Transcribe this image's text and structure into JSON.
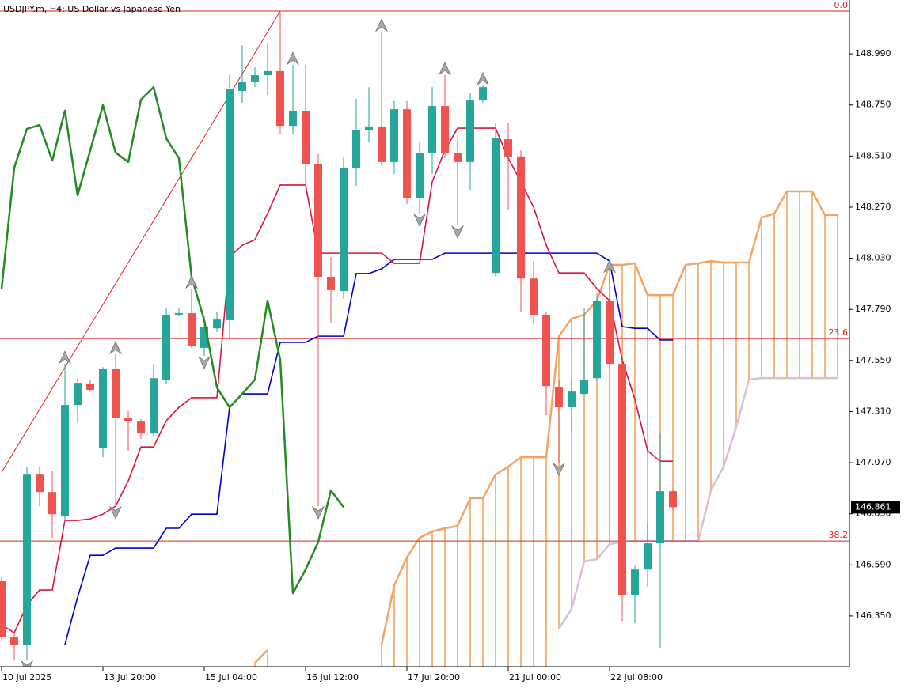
{
  "chart_data": {
    "type": "candlestick",
    "title": "USDJPY.m, H4:  US Dollar vs Japanese Yen",
    "categories": [
      "10 Jul 2025",
      null,
      null,
      null,
      null,
      null,
      null,
      null,
      "13 Jul 20:00",
      null,
      null,
      null,
      null,
      null,
      null,
      null,
      "15 Jul 04:00",
      null,
      null,
      null,
      null,
      null,
      null,
      null,
      "16 Jul 12:00",
      null,
      null,
      null,
      null,
      null,
      null,
      null,
      "17 Jul 20:00",
      null,
      null,
      null,
      null,
      null,
      null,
      null,
      "21 Jul 00:00",
      null,
      null,
      null,
      null,
      null,
      null,
      null,
      "22 Jul 08:00",
      null,
      null,
      null,
      null,
      null,
      null,
      null,
      null,
      null,
      null,
      null,
      null,
      null,
      null,
      null,
      null,
      null,
      null
    ],
    "open": [
      146.513,
      146.253,
      146.216,
      147.014,
      146.932,
      146.821,
      147.341,
      147.438,
      147.14,
      147.512,
      147.282,
      147.263,
      147.207,
      147.46,
      147.765,
      147.772,
      147.609,
      147.701,
      147.739,
      148.816,
      148.857,
      148.89,
      148.909,
      148.652,
      148.723,
      148.474,
      147.943,
      147.876,
      148.455,
      148.63,
      148.649,
      148.482,
      148.73,
      148.314,
      148.526,
      148.745,
      148.526,
      148.482,
      148.771,
      147.961,
      148.589,
      148.508,
      147.935,
      147.765,
      147.423,
      147.33,
      147.393,
      147.467,
      147.831,
      147.534,
      146.45,
      146.568,
      146.691,
      146.936,
      null,
      null,
      null,
      null,
      null,
      null,
      null,
      null,
      null,
      null,
      null,
      null,
      null
    ],
    "high": [
      146.531,
      146.271,
      147.051,
      147.051,
      147.033,
      147.534,
      147.467,
      147.46,
      147.519,
      147.579,
      147.311,
      147.274,
      147.534,
      147.794,
      147.794,
      147.887,
      147.757,
      147.776,
      148.89,
      149.031,
      148.927,
      149.039,
      149.191,
      148.938,
      148.938,
      148.519,
      148.036,
      148.508,
      148.779,
      148.834,
      149.094,
      148.768,
      148.768,
      148.574,
      148.834,
      148.89,
      148.593,
      148.805,
      148.842,
      148.667,
      148.667,
      148.537,
      148.017,
      147.776,
      147.46,
      147.46,
      147.794,
      147.869,
      147.961,
      147.553,
      146.587,
      146.791,
      147.207,
      146.94,
      null,
      null,
      null,
      null,
      null,
      null,
      null,
      null,
      null,
      null,
      null,
      null,
      null
    ],
    "low": [
      146.234,
      146.141,
      146.141,
      146.866,
      146.717,
      146.791,
      147.256,
      147.404,
      147.096,
      146.866,
      147.126,
      147.181,
      147.192,
      147.441,
      147.757,
      147.609,
      147.571,
      147.683,
      147.646,
      148.76,
      148.834,
      148.797,
      148.612,
      148.612,
      148.37,
      146.866,
      147.727,
      147.839,
      148.37,
      148.574,
      148.463,
      148.426,
      148.285,
      148.24,
      148.426,
      148.5,
      148.184,
      148.351,
      148.76,
      147.943,
      148.259,
      147.776,
      147.72,
      147.293,
      147.07,
      147.218,
      147.386,
      147.46,
      147.516,
      146.327,
      146.316,
      146.487,
      146.197,
      146.847,
      null,
      null,
      null,
      null,
      null,
      null,
      null,
      null,
      null,
      null,
      null,
      null,
      null
    ],
    "close": [
      146.253,
      146.216,
      147.014,
      146.932,
      146.828,
      147.341,
      147.445,
      147.412,
      147.512,
      147.282,
      147.263,
      147.207,
      147.467,
      147.765,
      147.772,
      147.616,
      147.709,
      147.742,
      148.823,
      148.857,
      148.89,
      148.909,
      148.652,
      148.723,
      148.474,
      147.943,
      147.88,
      148.455,
      148.63,
      148.649,
      148.482,
      148.73,
      148.314,
      148.526,
      148.745,
      148.526,
      148.482,
      148.771,
      148.834,
      148.593,
      148.508,
      147.935,
      147.765,
      147.43,
      147.33,
      147.404,
      147.46,
      147.831,
      147.534,
      146.45,
      146.568,
      146.691,
      146.936,
      146.861,
      null,
      null,
      null,
      null,
      null,
      null,
      null,
      null,
      null,
      null,
      null,
      null,
      null
    ],
    "up_color": "#26a69a",
    "down_color": "#ef5350",
    "last_price": 146.861,
    "ylim": [
      146.112,
      149.243
    ],
    "yticks": [
      {
        "value": 146.35,
        "label": "146.350"
      },
      {
        "value": 146.59,
        "label": "146.590"
      },
      {
        "value": 146.83,
        "label": "146.830"
      },
      {
        "value": 147.07,
        "label": "147.070"
      },
      {
        "value": 147.31,
        "label": "147.310"
      },
      {
        "value": 147.55,
        "label": "147.550"
      },
      {
        "value": 147.79,
        "label": "147.790"
      },
      {
        "value": 148.03,
        "label": "148.030"
      },
      {
        "value": 148.27,
        "label": "148.270"
      },
      {
        "value": 148.51,
        "label": "148.510"
      },
      {
        "value": 148.75,
        "label": "148.750"
      },
      {
        "value": 148.99,
        "label": "148.990"
      }
    ],
    "tenkan": {
      "color": "#dc143c",
      "values": [
        146.308,
        146.271,
        146.401,
        146.472,
        146.472,
        146.799,
        146.799,
        146.806,
        146.828,
        146.866,
        146.984,
        147.144,
        147.144,
        147.267,
        147.33,
        147.375,
        147.375,
        147.375,
        148.036,
        148.091,
        148.117,
        148.24,
        148.374,
        148.374,
        148.374,
        148.054,
        148.054,
        148.054,
        148.054,
        148.054,
        148.054,
        148.006,
        148.006,
        148.006,
        148.389,
        148.537,
        148.641,
        148.641,
        148.641,
        148.641,
        148.5,
        148.389,
        148.27,
        148.091,
        147.961,
        147.961,
        147.961,
        147.887,
        147.831,
        147.553,
        147.367,
        147.126,
        147.077,
        147.077,
        null,
        null,
        null,
        null,
        null,
        null,
        null,
        null,
        null,
        null,
        null,
        null,
        null
      ]
    },
    "kijun": {
      "color": "#0000cd",
      "values": [
        null,
        null,
        null,
        null,
        null,
        146.216,
        146.438,
        146.635,
        146.635,
        146.669,
        146.669,
        146.669,
        146.669,
        146.762,
        146.762,
        146.828,
        146.828,
        146.828,
        147.33,
        147.393,
        147.393,
        147.393,
        147.635,
        147.635,
        147.635,
        147.664,
        147.664,
        147.664,
        147.958,
        147.958,
        147.98,
        148.025,
        148.025,
        148.025,
        148.025,
        148.054,
        148.054,
        148.054,
        148.054,
        148.054,
        148.054,
        148.054,
        148.054,
        148.054,
        148.054,
        148.054,
        148.054,
        148.054,
        148.017,
        147.709,
        147.701,
        147.701,
        147.646,
        147.646,
        null,
        null,
        null,
        null,
        null,
        null,
        null,
        null,
        null,
        null,
        null,
        null,
        null
      ]
    },
    "chikou": {
      "color": "#228b22",
      "values": [
        147.887,
        148.455,
        148.638,
        148.656,
        148.489,
        148.723,
        148.326,
        148.537,
        148.749,
        148.526,
        148.482,
        148.775,
        148.834,
        148.593,
        148.5,
        147.943,
        147.739,
        147.423,
        147.33,
        147.393,
        147.46,
        147.831,
        147.553,
        146.457,
        146.568,
        146.698,
        146.94,
        146.861,
        null,
        null,
        null,
        null,
        null,
        null,
        null,
        null,
        null,
        null,
        null,
        null,
        null,
        null,
        null,
        null,
        null,
        null,
        null,
        null,
        null,
        null,
        null,
        null,
        null,
        null,
        null,
        null,
        null,
        null,
        null,
        null,
        null,
        null,
        null,
        null,
        null,
        null,
        null
      ]
    },
    "span_a": {
      "color": "#f4a460",
      "values": [
        null,
        null,
        null,
        null,
        null,
        null,
        null,
        null,
        null,
        null,
        null,
        null,
        null,
        null,
        null,
        null,
        null,
        null,
        null,
        null,
        146.13,
        146.19,
        null,
        null,
        null,
        null,
        null,
        null,
        null,
        null,
        146.216,
        146.494,
        146.625,
        146.717,
        146.747,
        146.762,
        146.773,
        146.903,
        146.903,
        147.014,
        147.051,
        147.096,
        147.096,
        147.096,
        147.664,
        147.746,
        147.765,
        147.831,
        147.999,
        147.999,
        148.006,
        147.857,
        147.857,
        147.857,
        147.999,
        148.006,
        148.017,
        148.01,
        148.01,
        148.01,
        148.221,
        148.24,
        148.344,
        148.344,
        148.344,
        148.233,
        148.233
      ]
    },
    "span_b": {
      "color": "#d8bfd8",
      "values": [
        null,
        null,
        null,
        null,
        null,
        null,
        null,
        null,
        null,
        null,
        null,
        null,
        null,
        null,
        null,
        null,
        null,
        null,
        null,
        null,
        null,
        null,
        null,
        null,
        null,
        null,
        null,
        null,
        null,
        null,
        null,
        null,
        null,
        null,
        null,
        null,
        null,
        null,
        null,
        null,
        null,
        null,
        null,
        null,
        146.29,
        146.383,
        146.606,
        146.617,
        146.687,
        146.698,
        146.702,
        146.702,
        146.702,
        146.702,
        146.702,
        146.702,
        146.94,
        147.051,
        147.237,
        147.46,
        147.467,
        147.467,
        147.467,
        147.467,
        147.467,
        147.467,
        147.467
      ]
    },
    "fractals_up": [
      5,
      9,
      15,
      23,
      30,
      35,
      38,
      48
    ],
    "fractals_down": [
      2,
      9,
      16,
      25,
      33,
      36,
      44
    ],
    "fibo_color": "#e02020",
    "fibo_levels": [
      {
        "level": "0.0",
        "price": 149.191
      },
      {
        "level": "23.6",
        "price": 147.653
      },
      {
        "level": "38.2",
        "price": 146.702
      }
    ],
    "fibo_trend": {
      "x": [
        0,
        22
      ],
      "y": [
        147.025,
        149.191
      ]
    }
  }
}
